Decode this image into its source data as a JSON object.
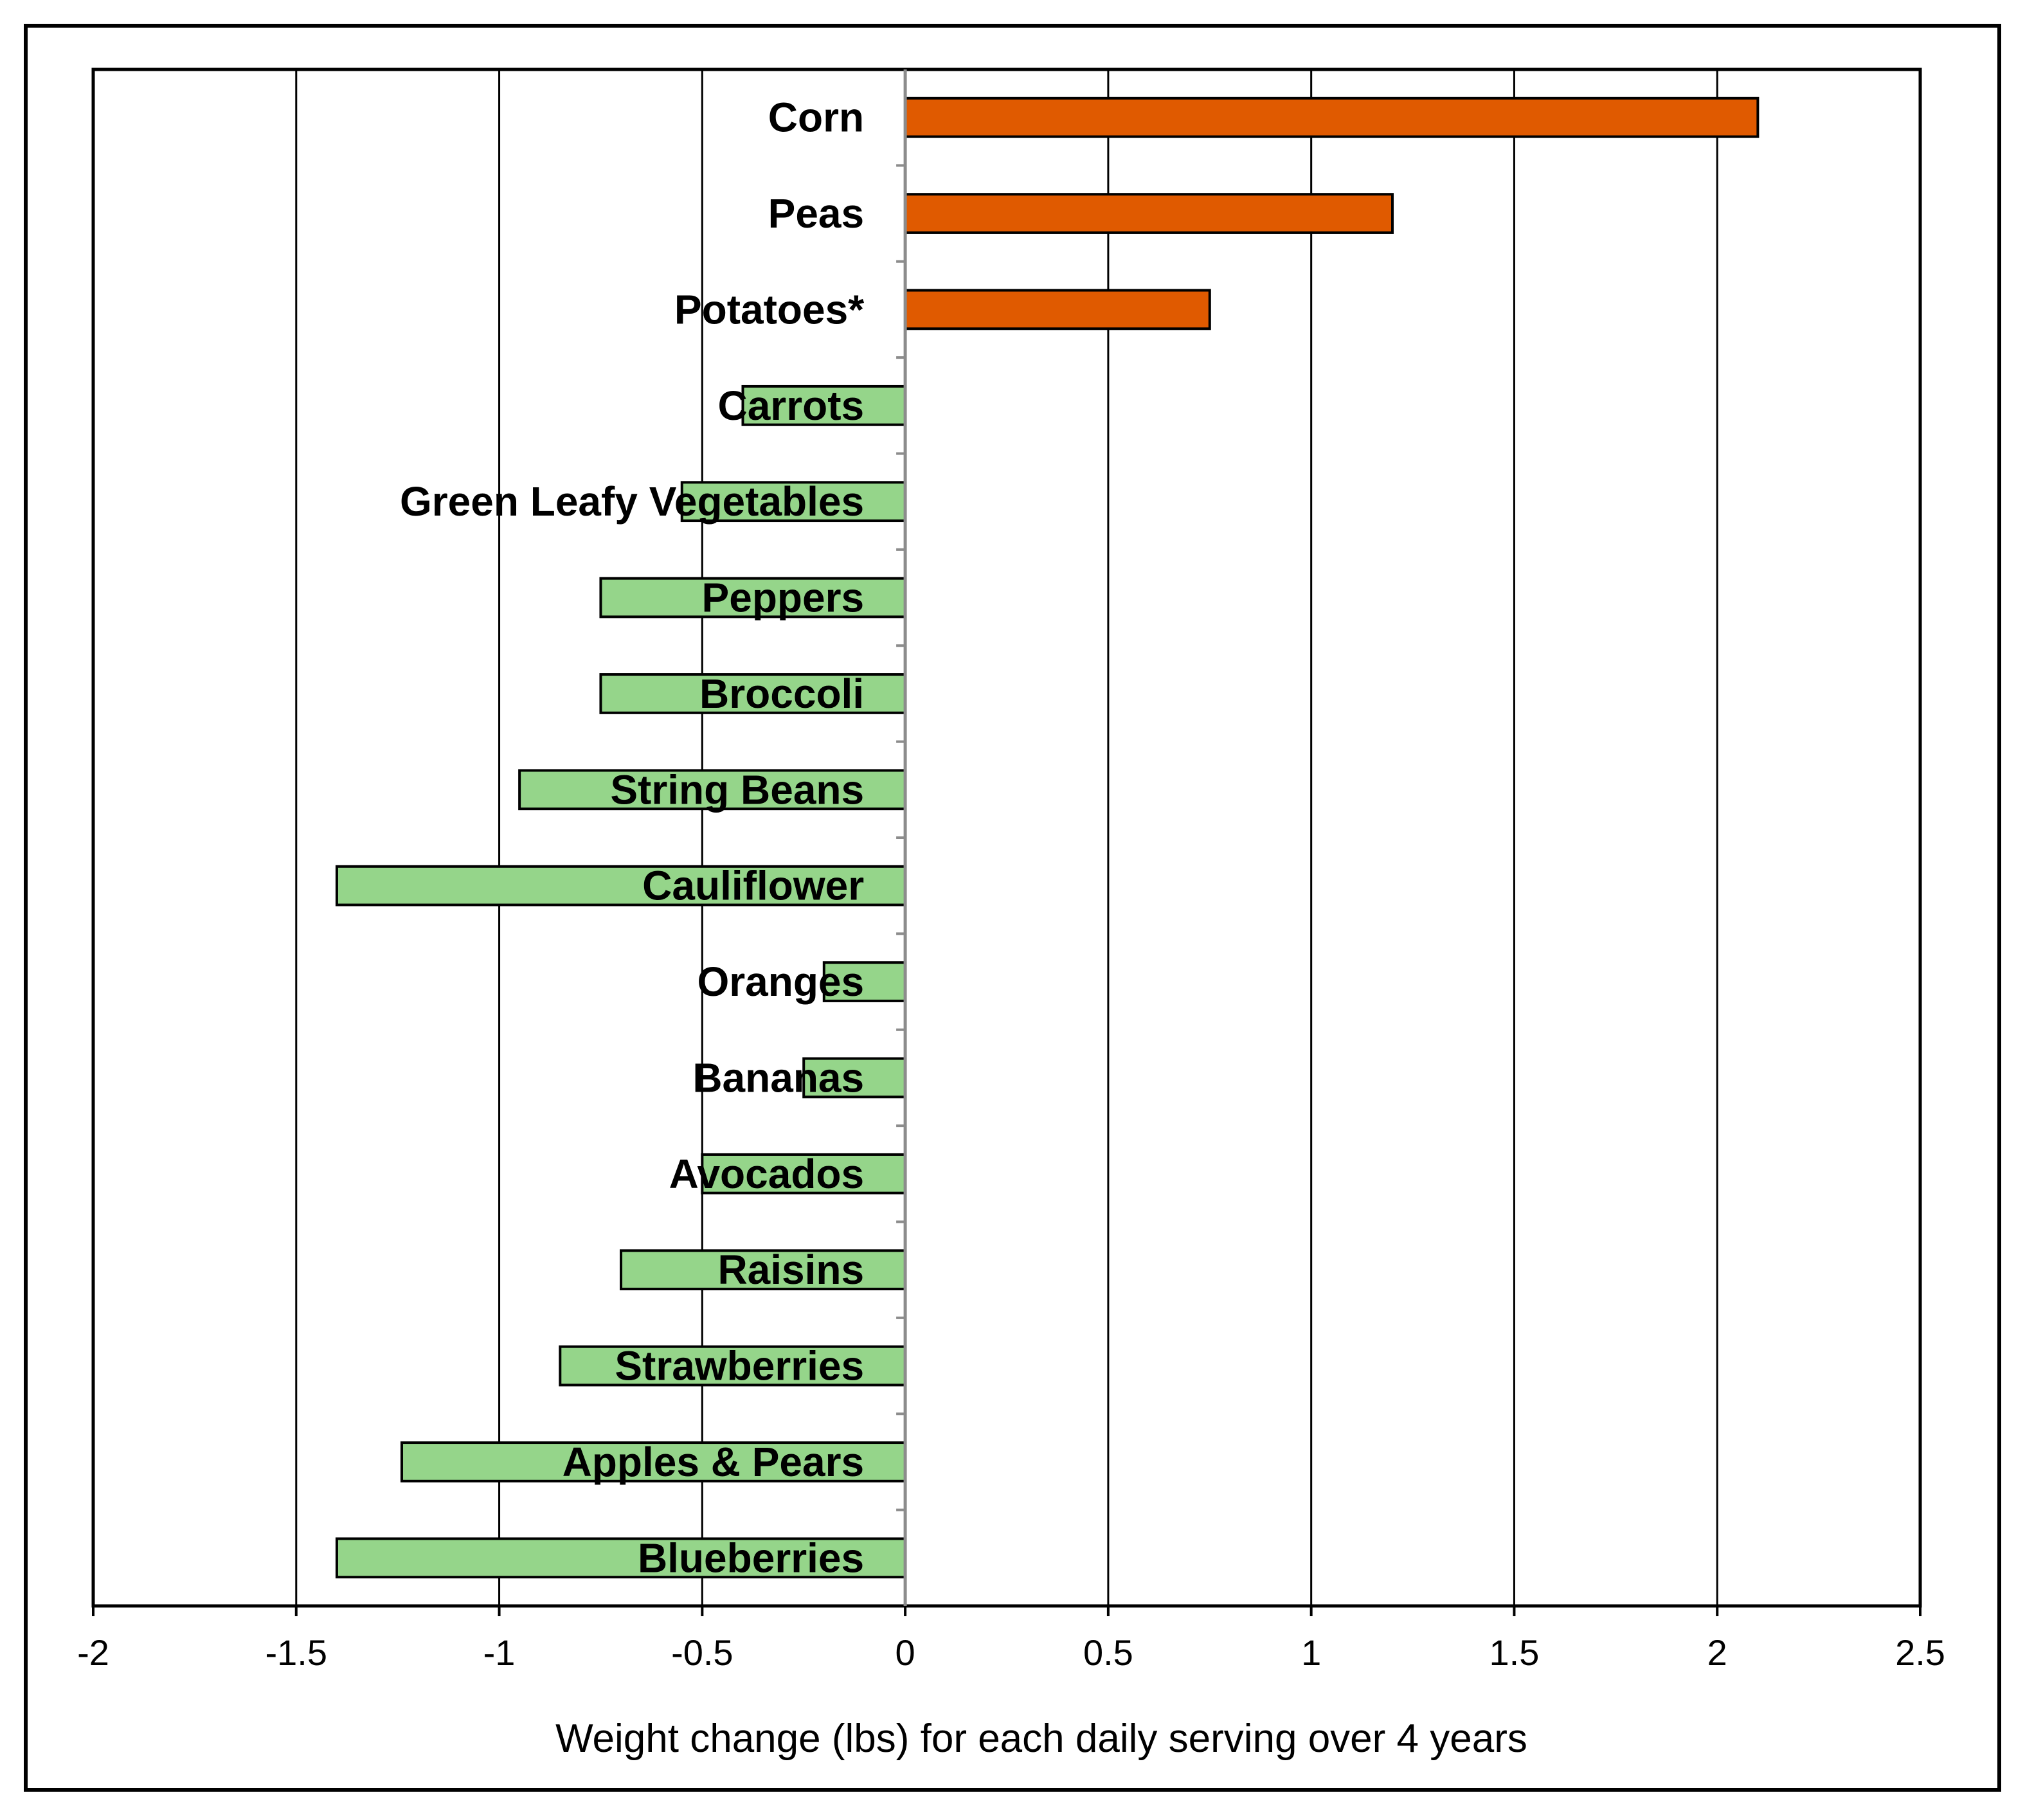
{
  "chart_data": {
    "type": "bar",
    "orientation": "horizontal",
    "title": "",
    "xlabel": "Weight change (lbs) for each daily serving over 4 years",
    "ylabel": "",
    "xlim": [
      -2,
      2.5
    ],
    "xticks": [
      -2,
      -1.5,
      -1,
      -0.5,
      0,
      0.5,
      1,
      1.5,
      2,
      2.5
    ],
    "xtick_labels": [
      "-2",
      "-1.5",
      "-1",
      "-0.5",
      "0",
      "0.5",
      "1",
      "1.5",
      "2",
      "2.5"
    ],
    "grid": "vertical",
    "legend": "none",
    "categories": [
      "Corn",
      "Peas",
      "Potatoes*",
      "Carrots",
      "Green Leafy Vegetables",
      "Peppers",
      "Broccoli",
      "String Beans",
      "Cauliflower",
      "Oranges",
      "Bananas",
      "Avocados",
      "Raisins",
      "Strawberries",
      "Apples & Pears",
      "Blueberries"
    ],
    "values": [
      2.1,
      1.2,
      0.75,
      -0.4,
      -0.55,
      -0.75,
      -0.75,
      -0.95,
      -1.4,
      -0.2,
      -0.25,
      -0.5,
      -0.7,
      -0.85,
      -1.24,
      -1.4
    ],
    "colors": {
      "positive": "#E05A00",
      "negative": "#95D58A",
      "outline": "#000000",
      "grid": "#000000",
      "zero_line": "#8C8C8C"
    }
  }
}
